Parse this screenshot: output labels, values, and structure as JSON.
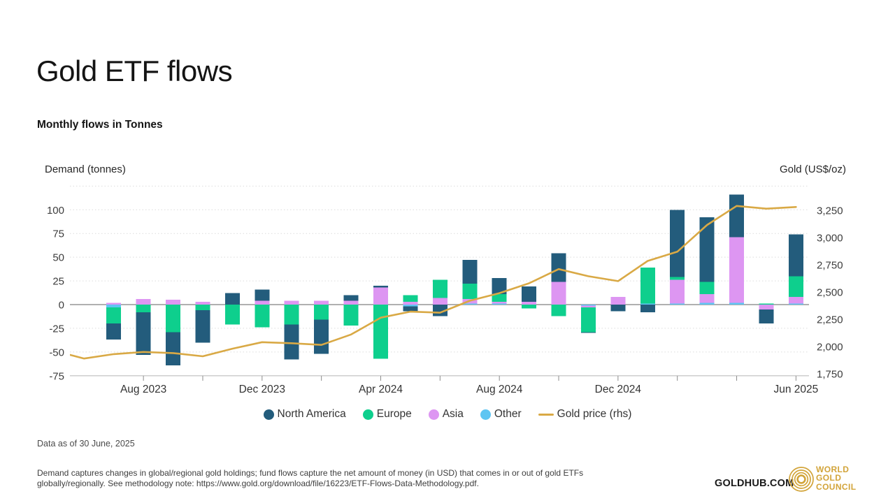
{
  "header": {
    "title": "Gold ETF flows",
    "subtitle": "Monthly flows in Tonnes"
  },
  "chart_data": {
    "type": "bar",
    "combo": "stacked-columns-with-line",
    "title": "Gold ETF flows",
    "subtitle": "Monthly flows in Tonnes",
    "grid": "dotted-horizontal",
    "legend_position": "bottom-center",
    "categories": [
      "Jun 2023",
      "Jul 2023",
      "Aug 2023",
      "Sep 2023",
      "Oct 2023",
      "Nov 2023",
      "Dec 2023",
      "Jan 2024",
      "Feb 2024",
      "Mar 2024",
      "Apr 2024",
      "May 2024",
      "Jun 2024",
      "Jul 2024",
      "Aug 2024",
      "Sep 2024",
      "Oct 2024",
      "Nov 2024",
      "Dec 2024",
      "Jan 2025",
      "Feb 2025",
      "Mar 2025",
      "Apr 2025",
      "May 2025",
      "Jun 2025"
    ],
    "series": [
      {
        "name": "North America",
        "kind": "column",
        "color": "#235c7c",
        "values": [
          0,
          -17,
          -45,
          -35,
          -34,
          12,
          12,
          -37,
          -36,
          6,
          2,
          -5,
          -12,
          25,
          17,
          16,
          30,
          -1,
          -7,
          -8,
          71,
          68,
          45,
          -15,
          44
        ]
      },
      {
        "name": "Europe",
        "kind": "column",
        "color": "#0ecf8d",
        "values": [
          0,
          -17,
          -8,
          -29,
          -6,
          -21,
          -24,
          -21,
          -16,
          -22,
          -57,
          7,
          19,
          16,
          8,
          -4,
          -12,
          -26,
          0,
          38,
          3,
          13,
          0,
          1,
          22
        ]
      },
      {
        "name": "Asia",
        "kind": "column",
        "color": "#dd96f2",
        "values": [
          0,
          2,
          6,
          5,
          3,
          0,
          4,
          4,
          4,
          4,
          18,
          3,
          7,
          5,
          2,
          3,
          24,
          -2,
          8,
          0,
          25,
          9,
          69,
          -5,
          7
        ]
      },
      {
        "name": "Other",
        "kind": "column",
        "color": "#5ec5f2",
        "values": [
          0,
          -3,
          0,
          0,
          0,
          0,
          0,
          0,
          0,
          0,
          0,
          -2,
          0,
          1,
          1,
          0,
          0,
          -1,
          0,
          1,
          1,
          2,
          2,
          0,
          1
        ]
      },
      {
        "name": "Gold price (rhs)",
        "kind": "line",
        "axis": "right",
        "color": "#d9a945",
        "values": [
          1890,
          1930,
          1950,
          1940,
          1910,
          1980,
          2040,
          2030,
          2015,
          2110,
          2265,
          2320,
          2310,
          2420,
          2490,
          2580,
          2710,
          2645,
          2600,
          2785,
          2870,
          3115,
          3290,
          3265,
          3280
        ]
      }
    ],
    "stack_order_from_zero": [
      "Other",
      "Asia",
      "Europe",
      "North America"
    ],
    "line_lead_in": {
      "category": "May 2023",
      "price": 1960
    },
    "left_axis": {
      "title": "Demand (tonnes)",
      "ticks": [
        100,
        75,
        50,
        25,
        0,
        -25,
        -50,
        -75
      ],
      "gridlines": [
        125,
        100,
        75,
        50,
        25,
        0,
        -25,
        -50,
        -75
      ],
      "range": [
        -75,
        130
      ]
    },
    "right_axis": {
      "title": "Gold (US$/oz)",
      "ticks": [
        "3,250",
        "3,000",
        "2,750",
        "2,500",
        "2,250",
        "2,000",
        "1,750"
      ],
      "tick_values": [
        3250,
        3000,
        2750,
        2500,
        2250,
        2000,
        1750
      ],
      "range": [
        1750,
        3330
      ]
    },
    "x_axis": {
      "tick_indices": [
        2,
        4,
        6,
        8,
        10,
        12,
        14,
        16,
        18,
        20,
        22,
        24
      ],
      "labels": [
        {
          "index": 2,
          "text": "Aug 2023"
        },
        {
          "index": 6,
          "text": "Dec 2023"
        },
        {
          "index": 10,
          "text": "Apr 2024"
        },
        {
          "index": 14,
          "text": "Aug 2024"
        },
        {
          "index": 18,
          "text": "Dec 2024"
        },
        {
          "index": 24,
          "text": "Jun 2025"
        }
      ]
    },
    "colors": {
      "grid_dotted": "#dcdcdc",
      "zero_line": "#b0b0b0",
      "axis_baseline": "#c9c9c9",
      "tick_mark": "#8c8c8c",
      "y_label": "#3d3d3d",
      "x_label": "#333333"
    }
  },
  "legend": {
    "items": [
      {
        "label": "North America",
        "color": "#235c7c",
        "swatch": "dot"
      },
      {
        "label": "Europe",
        "color": "#0ecf8d",
        "swatch": "dot"
      },
      {
        "label": "Asia",
        "color": "#dd96f2",
        "swatch": "dot"
      },
      {
        "label": "Other",
        "color": "#5ec5f2",
        "swatch": "dot"
      },
      {
        "label": "Gold price (rhs)",
        "color": "#d9a945",
        "swatch": "line"
      }
    ]
  },
  "footer": {
    "data_as_of": "Data as of 30 June, 2025",
    "disclaimer_line1": "Demand captures changes in global/regional gold holdings; fund flows capture the net amount of money (in USD) that comes in or out of gold ETFs",
    "disclaimer_line2": "globally/regionally. See methodology note: https://www.gold.org/download/file/16223/ETF-Flows-Data-Methodology.pdf.",
    "goldhub": "GOLDHUB.COM",
    "wgc": [
      "WORLD",
      "GOLD",
      "COUNCIL"
    ],
    "brand_gold": "#d2a43a"
  }
}
